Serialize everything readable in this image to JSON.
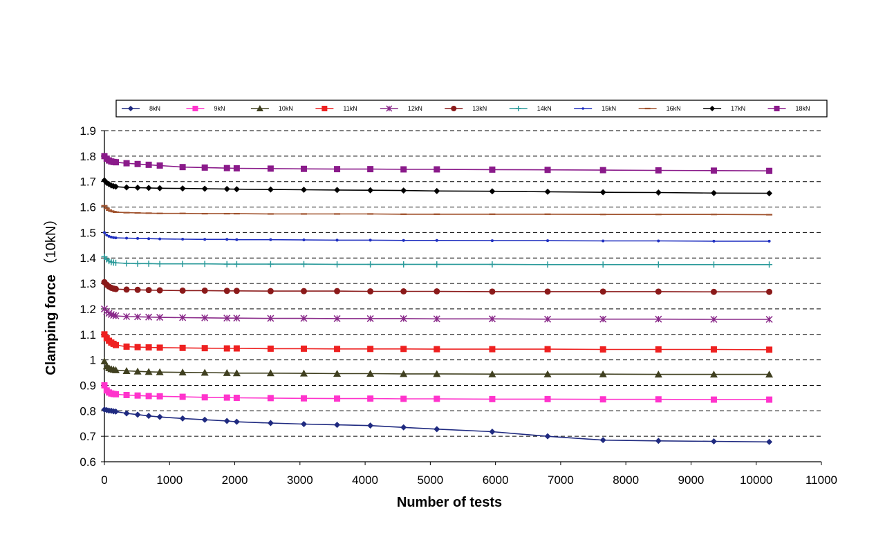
{
  "chart_data": {
    "type": "line",
    "xlabel": "Number of tests",
    "ylabel": "Clamping force",
    "ylabel_unit": "（10kN）",
    "xlim": [
      0,
      11000
    ],
    "ylim": [
      0.6,
      1.9
    ],
    "xticks": [
      "0",
      "1000",
      "2000",
      "3000",
      "4000",
      "5000",
      "6000",
      "7000",
      "8000",
      "9000",
      "10000",
      "11000"
    ],
    "yticks": [
      "0.6",
      "0.7",
      "0.8",
      "0.9",
      "1",
      "1.1",
      "1.2",
      "1.3",
      "1.4",
      "1.5",
      "1.6",
      "1.7",
      "1.8",
      "1.9"
    ],
    "grid": "horizontal dashed",
    "legend_position": "top",
    "x": [
      0,
      35,
      70,
      105,
      140,
      175,
      340,
      510,
      680,
      850,
      1200,
      1540,
      1880,
      2030,
      2550,
      3060,
      3570,
      4080,
      4590,
      5100,
      5950,
      6800,
      7650,
      8500,
      9350,
      10200
    ],
    "series": [
      {
        "name": "8kN",
        "color": "#1f2a80",
        "marker": "diamond",
        "values": [
          0.805,
          0.803,
          0.801,
          0.8,
          0.798,
          0.797,
          0.79,
          0.785,
          0.78,
          0.776,
          0.77,
          0.765,
          0.76,
          0.757,
          0.752,
          0.748,
          0.745,
          0.742,
          0.735,
          0.728,
          0.718,
          0.7,
          0.685,
          0.682,
          0.68,
          0.678
        ]
      },
      {
        "name": "9kN",
        "color": "#ff33cc",
        "marker": "square",
        "values": [
          0.9,
          0.88,
          0.872,
          0.868,
          0.866,
          0.865,
          0.862,
          0.86,
          0.858,
          0.857,
          0.855,
          0.853,
          0.852,
          0.851,
          0.85,
          0.849,
          0.848,
          0.848,
          0.847,
          0.847,
          0.846,
          0.846,
          0.845,
          0.845,
          0.844,
          0.844
        ]
      },
      {
        "name": "10kN",
        "color": "#404020",
        "marker": "triangle",
        "values": [
          0.995,
          0.975,
          0.968,
          0.964,
          0.962,
          0.96,
          0.957,
          0.955,
          0.953,
          0.952,
          0.951,
          0.95,
          0.949,
          0.948,
          0.948,
          0.947,
          0.946,
          0.946,
          0.945,
          0.945,
          0.944,
          0.944,
          0.944,
          0.943,
          0.943,
          0.943
        ]
      },
      {
        "name": "11kN",
        "color": "#ee2020",
        "marker": "square",
        "values": [
          1.1,
          1.085,
          1.075,
          1.068,
          1.063,
          1.058,
          1.052,
          1.05,
          1.049,
          1.048,
          1.047,
          1.046,
          1.045,
          1.045,
          1.044,
          1.044,
          1.043,
          1.043,
          1.043,
          1.042,
          1.042,
          1.042,
          1.041,
          1.041,
          1.041,
          1.04
        ]
      },
      {
        "name": "12kN",
        "color": "#8a2a8a",
        "marker": "asterisk",
        "values": [
          1.2,
          1.19,
          1.183,
          1.178,
          1.175,
          1.173,
          1.17,
          1.169,
          1.168,
          1.167,
          1.166,
          1.165,
          1.164,
          1.164,
          1.163,
          1.163,
          1.162,
          1.162,
          1.162,
          1.161,
          1.161,
          1.16,
          1.16,
          1.16,
          1.159,
          1.159
        ]
      },
      {
        "name": "13kN",
        "color": "#8b1a1a",
        "marker": "circle",
        "values": [
          1.305,
          1.295,
          1.288,
          1.283,
          1.28,
          1.278,
          1.276,
          1.275,
          1.274,
          1.273,
          1.272,
          1.272,
          1.271,
          1.271,
          1.27,
          1.27,
          1.27,
          1.269,
          1.269,
          1.269,
          1.268,
          1.268,
          1.268,
          1.268,
          1.267,
          1.267
        ]
      },
      {
        "name": "14kN",
        "color": "#2a9a9a",
        "marker": "plus",
        "values": [
          1.405,
          1.395,
          1.388,
          1.384,
          1.382,
          1.381,
          1.379,
          1.378,
          1.378,
          1.377,
          1.377,
          1.377,
          1.376,
          1.376,
          1.376,
          1.376,
          1.375,
          1.375,
          1.375,
          1.375,
          1.375,
          1.374,
          1.374,
          1.374,
          1.374,
          1.374
        ]
      },
      {
        "name": "15kN",
        "color": "#2030c0",
        "marker": "dot",
        "values": [
          1.5,
          1.49,
          1.485,
          1.482,
          1.48,
          1.479,
          1.478,
          1.477,
          1.476,
          1.475,
          1.474,
          1.473,
          1.473,
          1.472,
          1.472,
          1.471,
          1.47,
          1.47,
          1.469,
          1.469,
          1.468,
          1.468,
          1.467,
          1.467,
          1.466,
          1.466
        ]
      },
      {
        "name": "16kN",
        "color": "#a0522d",
        "marker": "dash",
        "values": [
          1.605,
          1.595,
          1.588,
          1.584,
          1.582,
          1.58,
          1.578,
          1.577,
          1.576,
          1.575,
          1.575,
          1.574,
          1.574,
          1.574,
          1.573,
          1.573,
          1.573,
          1.573,
          1.572,
          1.572,
          1.572,
          1.572,
          1.571,
          1.571,
          1.571,
          1.57
        ]
      },
      {
        "name": "17kN",
        "color": "#000000",
        "marker": "diamond",
        "values": [
          1.705,
          1.695,
          1.69,
          1.685,
          1.682,
          1.68,
          1.677,
          1.676,
          1.675,
          1.674,
          1.673,
          1.672,
          1.671,
          1.67,
          1.669,
          1.668,
          1.667,
          1.666,
          1.665,
          1.663,
          1.662,
          1.66,
          1.658,
          1.657,
          1.655,
          1.654
        ]
      },
      {
        "name": "18kN",
        "color": "#8a1a8a",
        "marker": "square",
        "values": [
          1.8,
          1.79,
          1.783,
          1.779,
          1.777,
          1.776,
          1.772,
          1.769,
          1.766,
          1.763,
          1.757,
          1.755,
          1.753,
          1.752,
          1.751,
          1.75,
          1.749,
          1.749,
          1.748,
          1.748,
          1.747,
          1.746,
          1.745,
          1.744,
          1.743,
          1.742
        ]
      }
    ]
  }
}
